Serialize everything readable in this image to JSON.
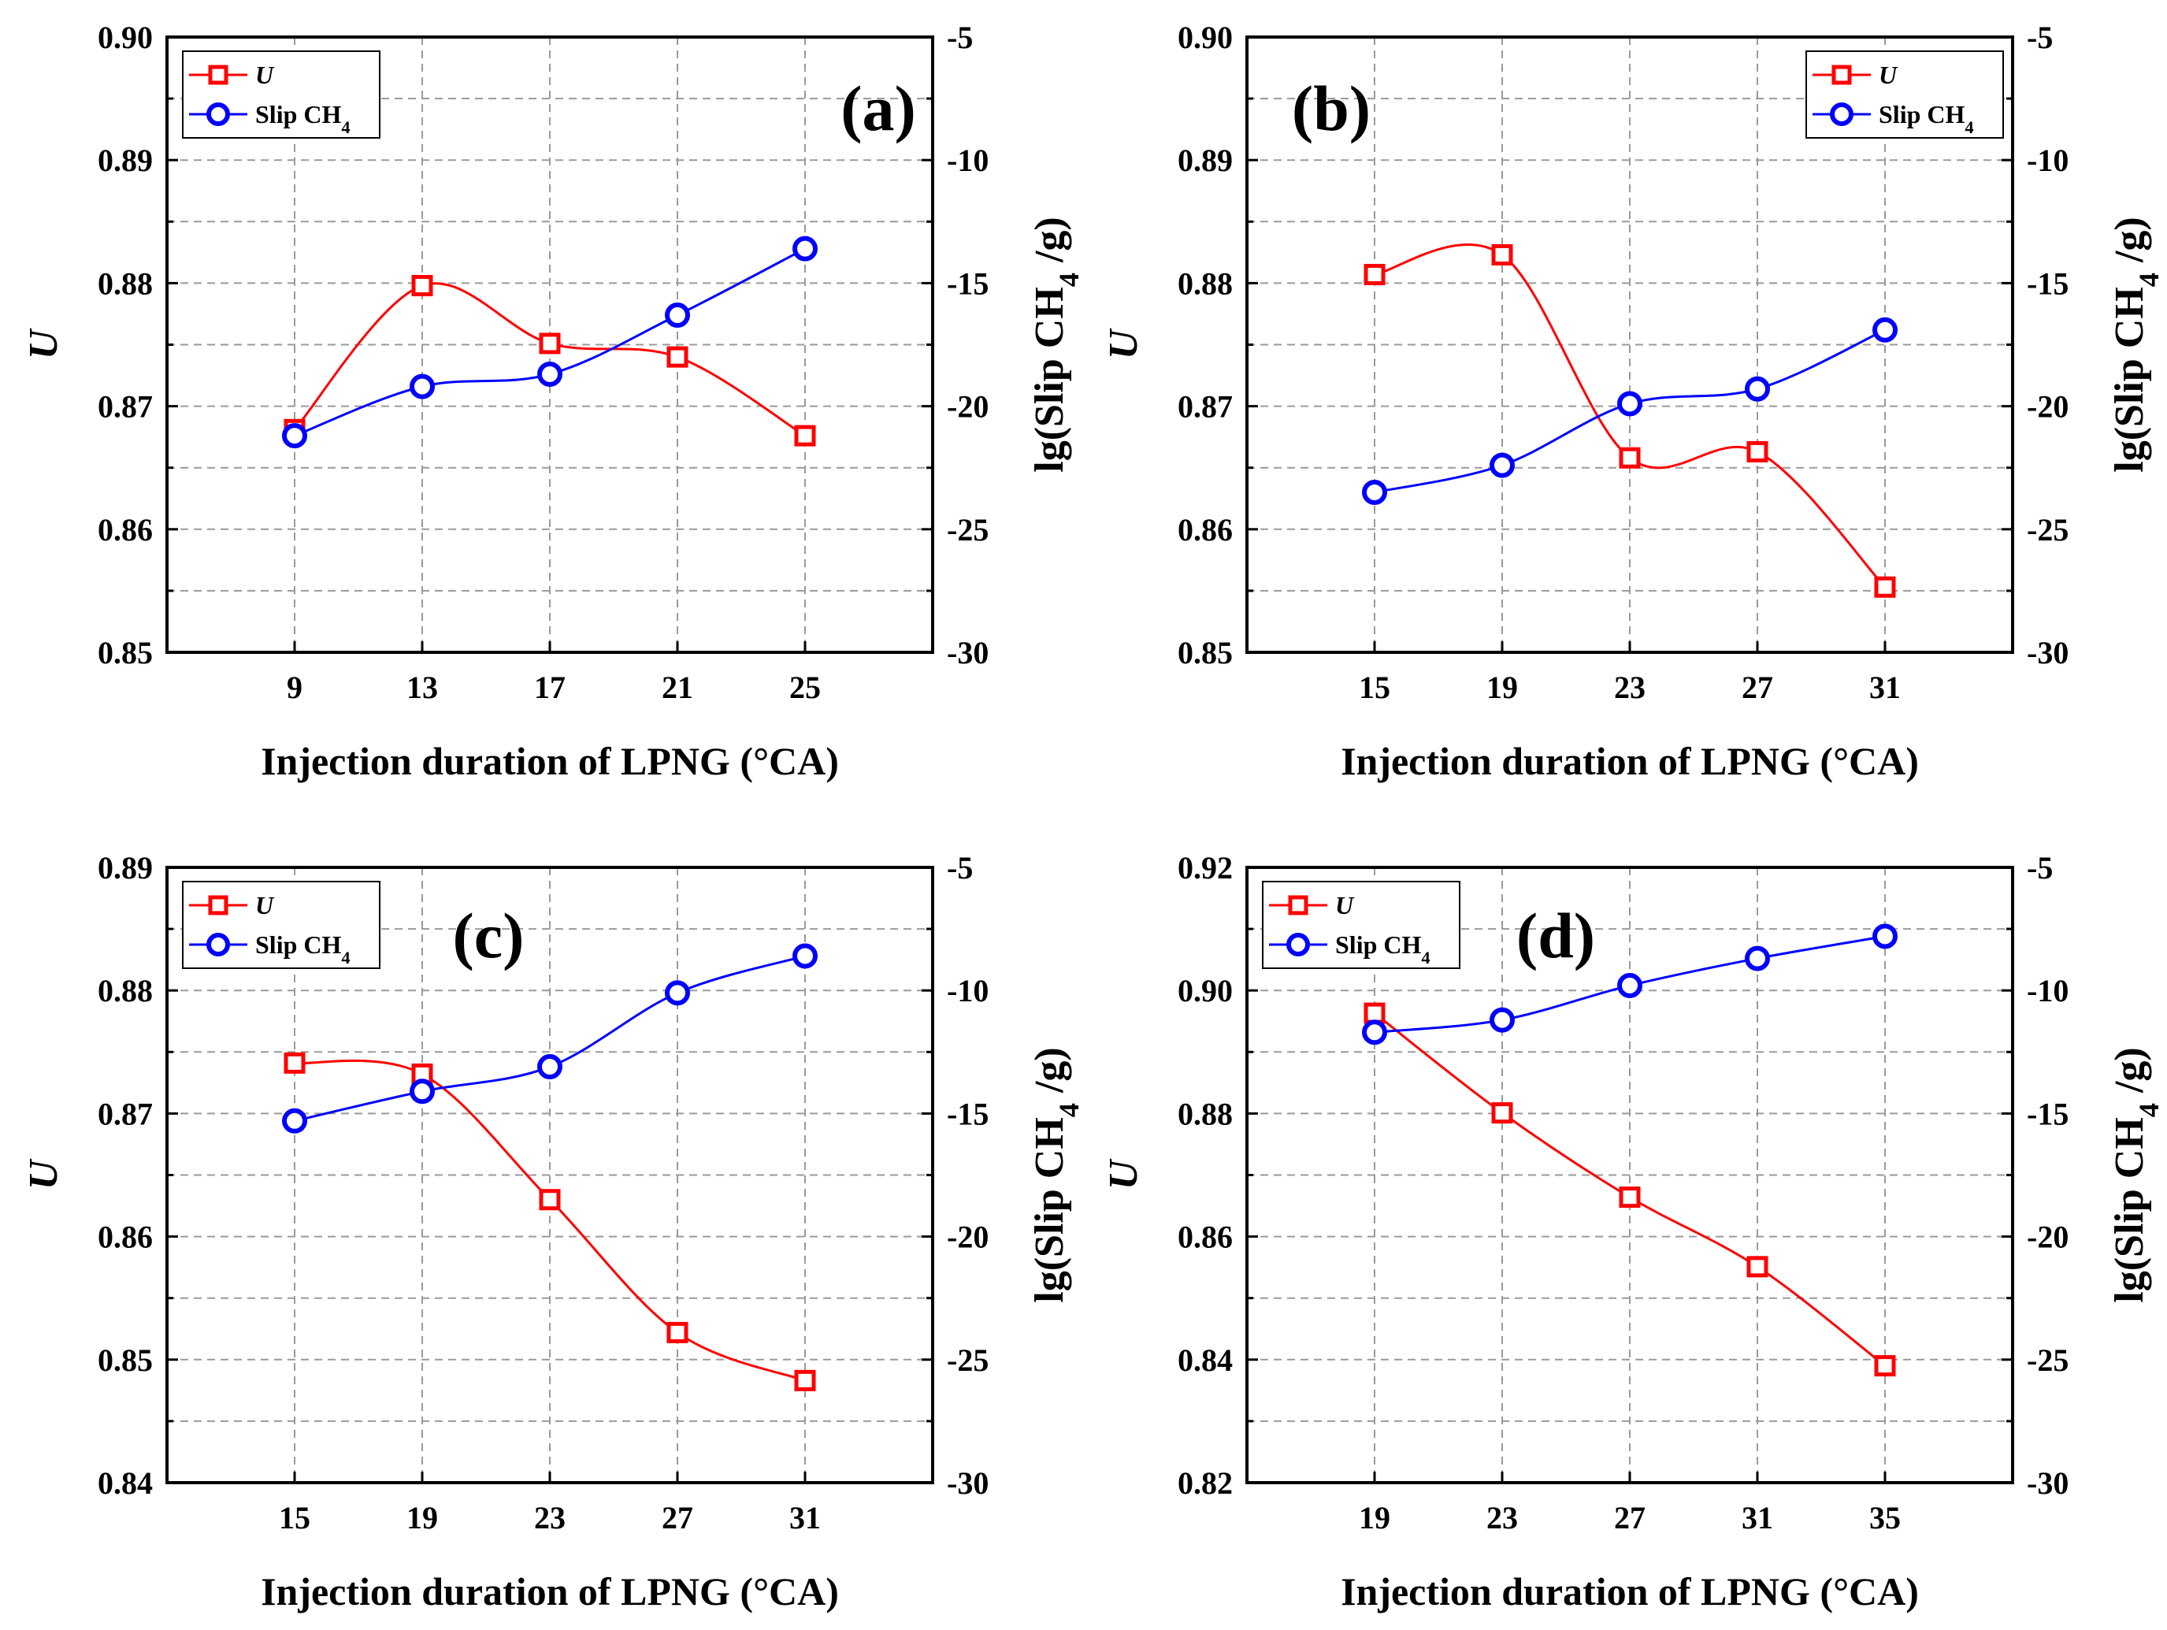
{
  "colors": {
    "u": "#ff0000",
    "slip": "#0000ff",
    "axis": "#000000",
    "grid": "#9a9a9a"
  },
  "chart_data": [
    {
      "type": "line",
      "panel_label": "(a)",
      "xlabel": "Injection duration of LPNG (°CA)",
      "ylabel": "U",
      "y2label": "lg(Slip CH4 /g)",
      "x": [
        9,
        13,
        17,
        21,
        25
      ],
      "xticks": [
        "9",
        "13",
        "17",
        "21",
        "25"
      ],
      "ylim": [
        0.85,
        0.9
      ],
      "yticks": [
        "0.85",
        "0.86",
        "0.87",
        "0.88",
        "0.89",
        "0.90"
      ],
      "y2lim": [
        -30,
        -5
      ],
      "y2ticks": [
        "-30",
        "-25",
        "-20",
        "-15",
        "-10",
        "-5"
      ],
      "legend_position": "top-left",
      "series": [
        {
          "name": "U",
          "axis": "left",
          "marker": "square",
          "values": [
            0.8681,
            0.8798,
            0.8751,
            0.874,
            0.8676
          ]
        },
        {
          "name": "Slip CH4",
          "axis": "right",
          "marker": "circle",
          "values": [
            -21.2,
            -19.2,
            -18.7,
            -16.3,
            -13.6
          ]
        }
      ]
    },
    {
      "type": "line",
      "panel_label": "(b)",
      "xlabel": "Injection duration of LPNG (°CA)",
      "ylabel": "U",
      "y2label": "lg(Slip CH4 /g)",
      "x": [
        15,
        19,
        23,
        27,
        31
      ],
      "xticks": [
        "15",
        "19",
        "23",
        "27",
        "31"
      ],
      "ylim": [
        0.85,
        0.9
      ],
      "yticks": [
        "0.85",
        "0.86",
        "0.87",
        "0.88",
        "0.89",
        "0.90"
      ],
      "y2lim": [
        -30,
        -5
      ],
      "y2ticks": [
        "-30",
        "-25",
        "-20",
        "-15",
        "-10",
        "-5"
      ],
      "legend_position": "top-right",
      "series": [
        {
          "name": "U",
          "axis": "left",
          "marker": "square",
          "values": [
            0.8807,
            0.8823,
            0.8658,
            0.8663,
            0.8553
          ]
        },
        {
          "name": "Slip CH4",
          "axis": "right",
          "marker": "circle",
          "values": [
            -23.5,
            -22.4,
            -19.9,
            -19.3,
            -16.9
          ]
        }
      ]
    },
    {
      "type": "line",
      "panel_label": "(c)",
      "xlabel": "Injection duration of LPNG (°CA)",
      "ylabel": "U",
      "y2label": "lg(Slip CH4 /g)",
      "x": [
        15,
        19,
        23,
        27,
        31
      ],
      "xticks": [
        "15",
        "19",
        "23",
        "27",
        "31"
      ],
      "ylim": [
        0.84,
        0.89
      ],
      "yticks": [
        "0.84",
        "0.85",
        "0.86",
        "0.87",
        "0.88",
        "0.89"
      ],
      "y2lim": [
        -30,
        -5
      ],
      "y2ticks": [
        "-30",
        "-25",
        "-20",
        "-15",
        "-10",
        "-5"
      ],
      "legend_position": "top-left",
      "series": [
        {
          "name": "U",
          "axis": "left",
          "marker": "square",
          "values": [
            0.8741,
            0.8732,
            0.863,
            0.8522,
            0.8483
          ]
        },
        {
          "name": "Slip CH4",
          "axis": "right",
          "marker": "circle",
          "values": [
            -15.3,
            -14.1,
            -13.1,
            -10.1,
            -8.6
          ]
        }
      ]
    },
    {
      "type": "line",
      "panel_label": "(d)",
      "xlabel": "Injection duration of LPNG (°CA)",
      "ylabel": "U",
      "y2label": "lg(Slip CH4 /g)",
      "x": [
        19,
        23,
        27,
        31,
        35
      ],
      "xticks": [
        "19",
        "23",
        "27",
        "31",
        "35"
      ],
      "ylim": [
        0.82,
        0.92
      ],
      "yticks": [
        "0.82",
        "0.84",
        "0.86",
        "0.88",
        "0.90",
        "0.92"
      ],
      "y2lim": [
        -30,
        -5
      ],
      "y2ticks": [
        "-30",
        "-25",
        "-20",
        "-15",
        "-10",
        "-5"
      ],
      "legend_position": "top-left",
      "series": [
        {
          "name": "U",
          "axis": "left",
          "marker": "square",
          "values": [
            0.8963,
            0.8801,
            0.8664,
            0.8551,
            0.839
          ]
        },
        {
          "name": "Slip CH4",
          "axis": "right",
          "marker": "circle",
          "values": [
            -11.7,
            -11.2,
            -9.8,
            -8.7,
            -7.8
          ]
        }
      ]
    }
  ]
}
